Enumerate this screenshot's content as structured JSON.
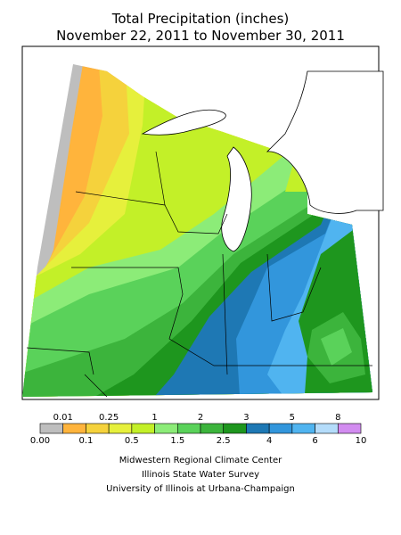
{
  "title": {
    "line1": "Total Precipitation (inches)",
    "line2": "November 22, 2011 to November 30, 2011"
  },
  "legend": {
    "colors": [
      "#bebebe",
      "#ffb43c",
      "#f5d23c",
      "#e6f03c",
      "#c3f028",
      "#8cec78",
      "#5ad25a",
      "#3cb43c",
      "#1e961e",
      "#1e78b4",
      "#3296dc",
      "#50b4f0",
      "#b4dcfa",
      "#d28cf0"
    ],
    "labels": [
      "0.00",
      "0.01",
      "0.1",
      "0.25",
      "0.5",
      "1",
      "1.5",
      "2",
      "2.5",
      "3",
      "4",
      "5",
      "6",
      "8",
      "10"
    ]
  },
  "credits": [
    "Midwestern Regional Climate Center",
    "Illinois State Water Survey",
    "University of Illinois at Urbana-Champaign"
  ]
}
